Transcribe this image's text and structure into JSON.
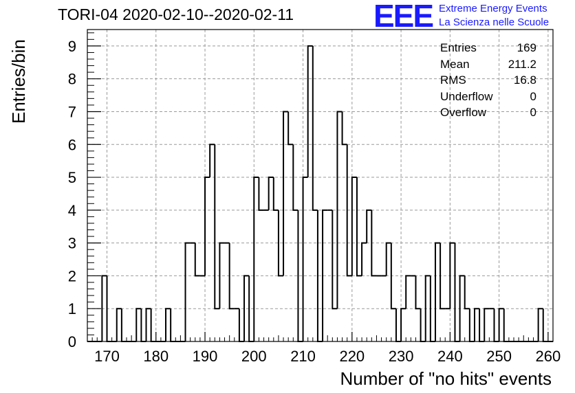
{
  "title": "TORI-04 2020-02-10--2020-02-11",
  "logo": {
    "mark": "EEE",
    "line1": "Extreme Energy Events",
    "line2": "La Scienza nelle Scuole",
    "color": "#1a1aff"
  },
  "stats": [
    {
      "label": "Entries",
      "value": "169"
    },
    {
      "label": "Mean",
      "value": "211.2"
    },
    {
      "label": "RMS",
      "value": "16.8"
    },
    {
      "label": "Underflow",
      "value": "0"
    },
    {
      "label": "Overflow",
      "value": "0"
    }
  ],
  "chart_data": {
    "type": "bar",
    "histogram": true,
    "xlabel": "Number of \"no hits\" events",
    "ylabel": "Entries/bin",
    "xlim": [
      166,
      261
    ],
    "ylim": [
      0,
      9.5
    ],
    "bin_width": 1,
    "grid": true,
    "xticks": [
      "170",
      "180",
      "190",
      "200",
      "210",
      "220",
      "230",
      "240",
      "250",
      "260"
    ],
    "yticks": [
      "0",
      "1",
      "2",
      "3",
      "4",
      "5",
      "6",
      "7",
      "8",
      "9"
    ],
    "x": [
      166,
      167,
      168,
      169,
      170,
      171,
      172,
      173,
      174,
      175,
      176,
      177,
      178,
      179,
      180,
      181,
      182,
      183,
      184,
      185,
      186,
      187,
      188,
      189,
      190,
      191,
      192,
      193,
      194,
      195,
      196,
      197,
      198,
      199,
      200,
      201,
      202,
      203,
      204,
      205,
      206,
      207,
      208,
      209,
      210,
      211,
      212,
      213,
      214,
      215,
      216,
      217,
      218,
      219,
      220,
      221,
      222,
      223,
      224,
      225,
      226,
      227,
      228,
      229,
      230,
      231,
      232,
      233,
      234,
      235,
      236,
      237,
      238,
      239,
      240,
      241,
      242,
      243,
      244,
      245,
      246,
      247,
      248,
      249,
      250,
      251,
      252,
      253,
      254,
      255,
      256,
      257,
      258,
      259,
      260
    ],
    "values": [
      0,
      0,
      0,
      2,
      0,
      0,
      1,
      0,
      0,
      0,
      1,
      0,
      1,
      0,
      0,
      0,
      1,
      0,
      0,
      0,
      3,
      3,
      2,
      2,
      5,
      6,
      1,
      3,
      3,
      1,
      1,
      0,
      2,
      0,
      5,
      4,
      4,
      5,
      4,
      2,
      7,
      6,
      4,
      0,
      5,
      9,
      4,
      0,
      4,
      4,
      1,
      7,
      6,
      2,
      5,
      2,
      3,
      4,
      2,
      2,
      2,
      3,
      1,
      0,
      1,
      2,
      2,
      1,
      0,
      2,
      0,
      3,
      1,
      1,
      3,
      0,
      2,
      1,
      0,
      1,
      0,
      1,
      1,
      0,
      1,
      0,
      0,
      0,
      0,
      0,
      0,
      0,
      1,
      0,
      0
    ]
  }
}
